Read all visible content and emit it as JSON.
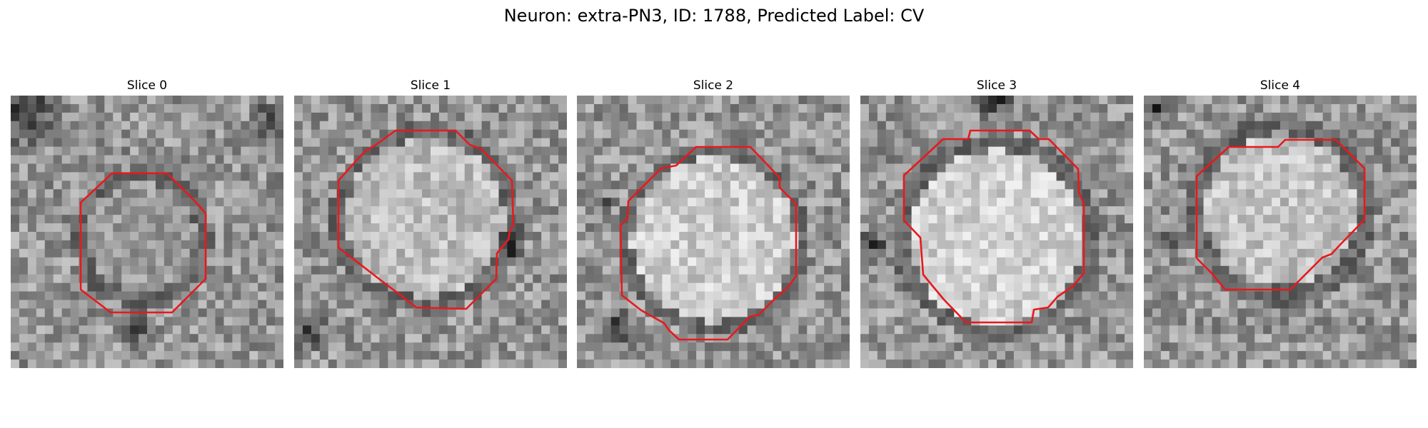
{
  "figure": {
    "title": "Neuron: extra-PN3, ID: 1788, Predicted Label: CV"
  },
  "panels": [
    {
      "title": "Slice 0"
    },
    {
      "title": "Slice 1"
    },
    {
      "title": "Slice 2"
    },
    {
      "title": "Slice 3"
    },
    {
      "title": "Slice 4"
    }
  ],
  "colors": {
    "contour": "#e8191d",
    "background": "#ffffff"
  }
}
